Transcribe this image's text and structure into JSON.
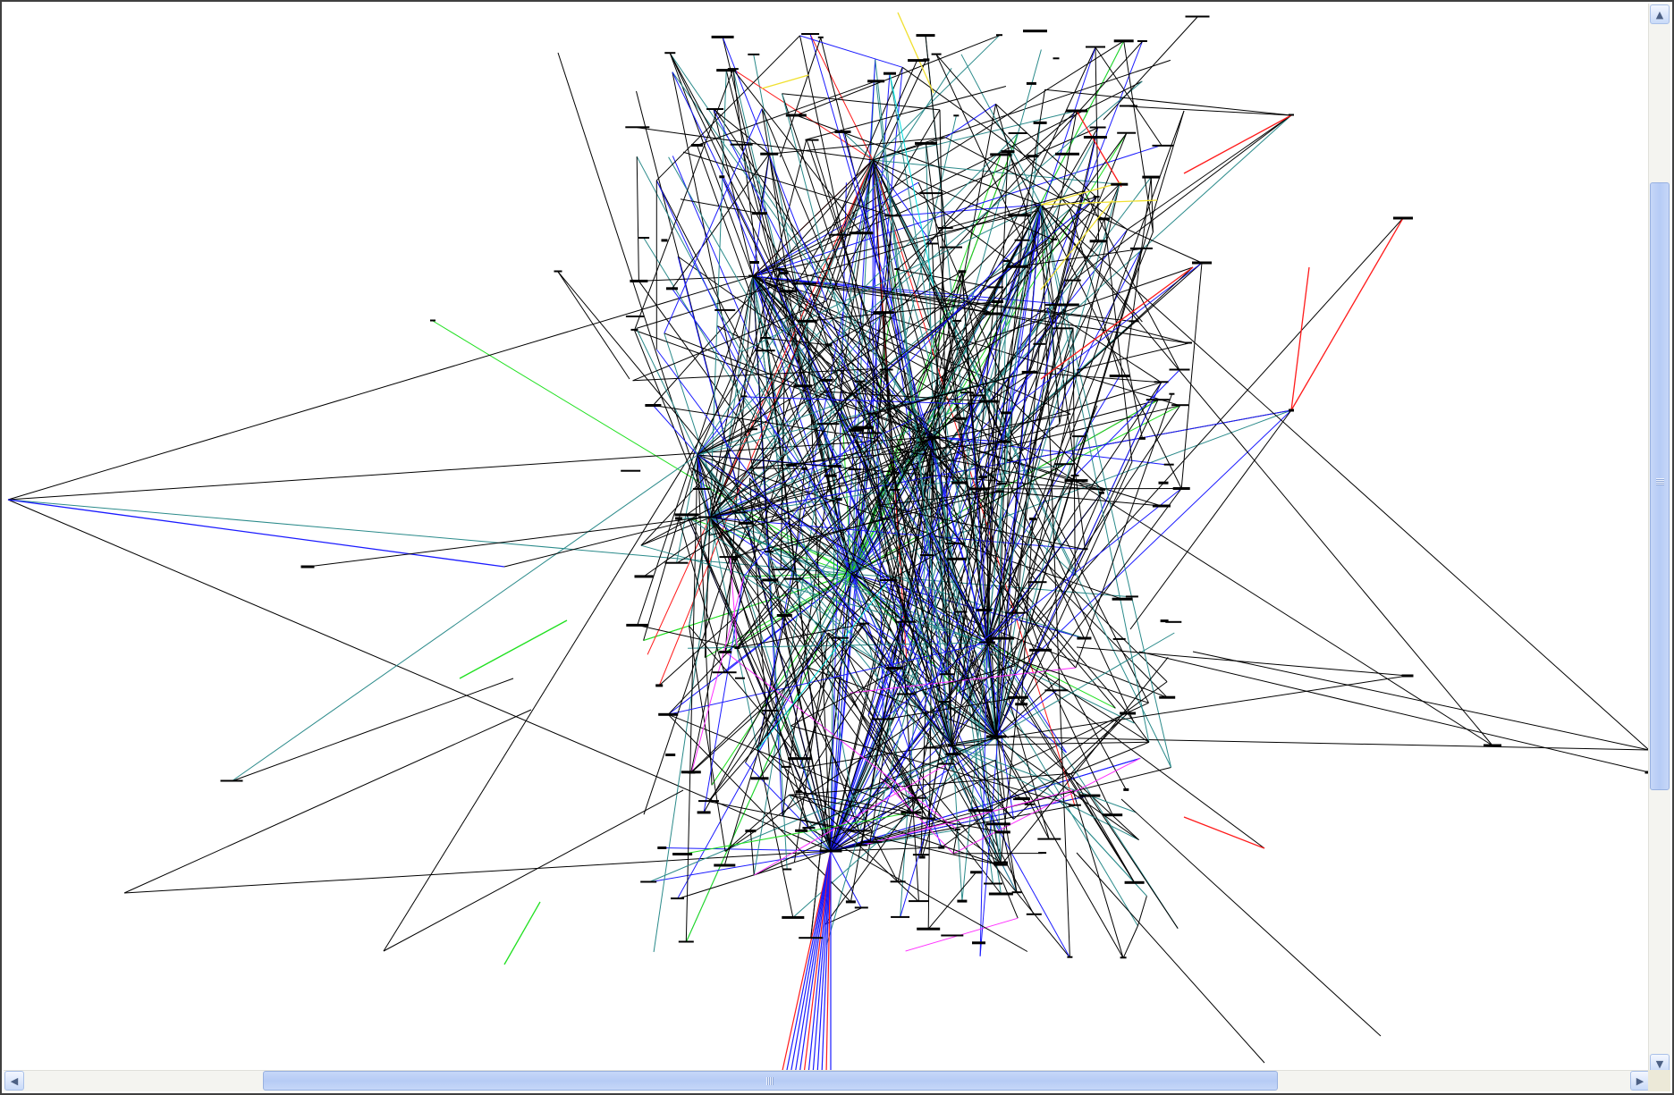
{
  "view": {
    "type": "network-graph",
    "edge_colors": {
      "default": "#000000",
      "blue": "#1a1aff",
      "teal": "#2a8a8a",
      "cyan": "#00e0e0",
      "red": "#ff1a1a",
      "yellow": "#f0e030",
      "green": "#20e020",
      "magenta": "#ff30ff",
      "dark_green": "#208020"
    }
  },
  "scrollbars": {
    "vertical": {
      "up_icon": "arrow-up-icon",
      "down_icon": "arrow-down-icon",
      "up_glyph": "▲",
      "down_glyph": "▼"
    },
    "horizontal": {
      "left_icon": "arrow-left-icon",
      "right_icon": "arrow-right-icon",
      "left_glyph": "◀",
      "right_glyph": "▶"
    }
  }
}
